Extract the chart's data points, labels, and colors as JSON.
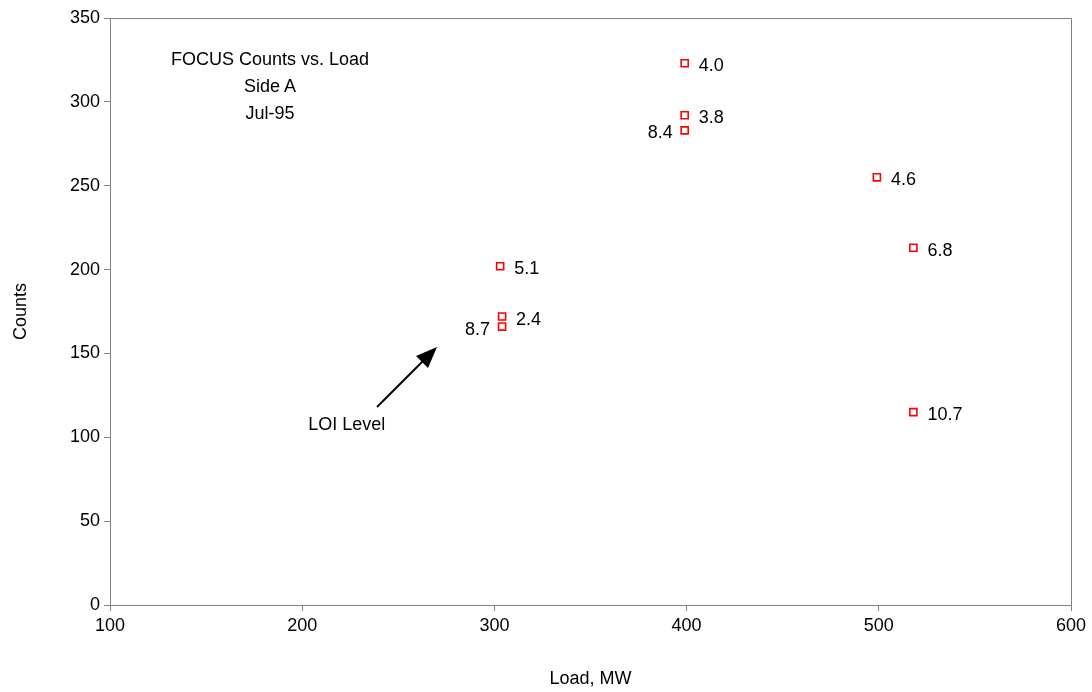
{
  "chart_data": {
    "type": "scatter",
    "title": "FOCUS Counts vs. Load",
    "subtitle": "Side A\nJul-95",
    "xlabel": "Load, MW",
    "ylabel": "Counts",
    "x": [
      399,
      399,
      399,
      303,
      304,
      304,
      499,
      518,
      518
    ],
    "values": [
      323,
      292,
      283,
      202,
      172,
      166,
      255,
      213,
      115
    ],
    "color": "#ff0000",
    "marker": "square",
    "xlim": [
      100,
      600
    ],
    "xticks": [
      100,
      200,
      300,
      400,
      500,
      600
    ],
    "ylim": [
      0,
      350
    ],
    "yticks": [
      0,
      50,
      100,
      150,
      200,
      250,
      300,
      350
    ],
    "grid": false,
    "legend": false,
    "annotations": [
      "LOI Level",
      {
        "text": "4.0",
        "x": 399,
        "y": 323
      },
      {
        "text": "3.8",
        "x": 399,
        "y": 292
      },
      {
        "text": "8.4",
        "x": 399,
        "y": 283
      },
      {
        "text": "5.1",
        "x": 303,
        "y": 202
      },
      {
        "text": "2.4",
        "x": 304,
        "y": 172
      },
      {
        "text": "8.7",
        "x": 304,
        "y": 166
      },
      {
        "text": "4.6",
        "x": 499,
        "y": 255
      },
      {
        "text": "6.8",
        "x": 518,
        "y": 213
      },
      {
        "text": "10.7",
        "x": 518,
        "y": 115
      }
    ]
  }
}
